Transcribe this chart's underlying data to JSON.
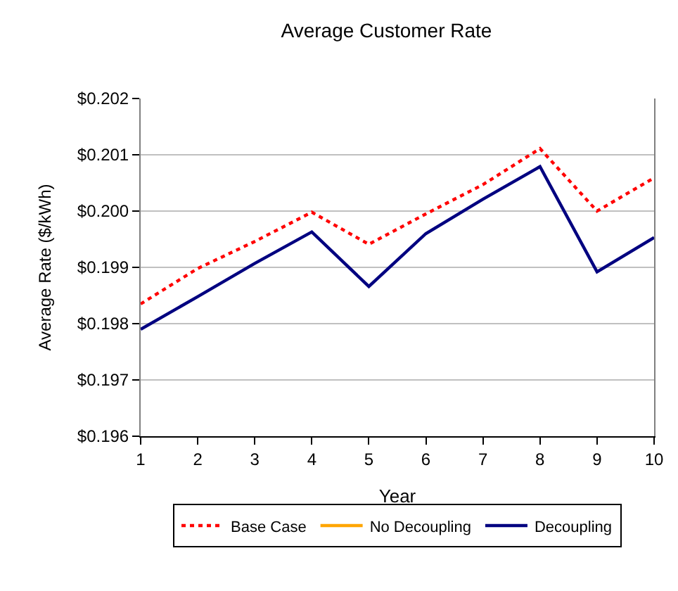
{
  "chart_data": {
    "type": "line",
    "title": "Average Customer Rate",
    "xlabel": "Year",
    "ylabel": "Average Rate ($/kWh)",
    "x": [
      1,
      2,
      3,
      4,
      5,
      6,
      7,
      8,
      9,
      10
    ],
    "series": [
      {
        "name": "Base Case",
        "color": "#ff0000",
        "line_style": "dotted",
        "values": [
          0.19835,
          0.19898,
          0.19946,
          0.19998,
          0.19941,
          0.19995,
          0.20047,
          0.20111,
          0.2,
          0.20059
        ]
      },
      {
        "name": "No Decoupling",
        "color": "#ffa500",
        "line_style": "solid",
        "values": [
          null,
          null,
          null,
          null,
          null,
          null,
          null,
          null,
          null,
          null
        ]
      },
      {
        "name": "Decoupling",
        "color": "#000080",
        "line_style": "solid",
        "values": [
          0.1979,
          0.19848,
          0.19907,
          0.19963,
          0.19866,
          0.1996,
          0.20021,
          0.20079,
          0.19892,
          0.19953
        ]
      }
    ],
    "xlim": [
      1,
      10
    ],
    "xticks": [
      1,
      2,
      3,
      4,
      5,
      6,
      7,
      8,
      9,
      10
    ],
    "ylim": [
      0.196,
      0.202
    ],
    "yticks": [
      {
        "value": 0.196,
        "label": "$0.196"
      },
      {
        "value": 0.197,
        "label": "$0.197"
      },
      {
        "value": 0.198,
        "label": "$0.198"
      },
      {
        "value": 0.199,
        "label": "$0.199"
      },
      {
        "value": 0.2,
        "label": "$0.200"
      },
      {
        "value": 0.201,
        "label": "$0.201"
      },
      {
        "value": 0.202,
        "label": "$0.202"
      }
    ],
    "grid": "y",
    "legend": "bottom",
    "marker": "none"
  }
}
